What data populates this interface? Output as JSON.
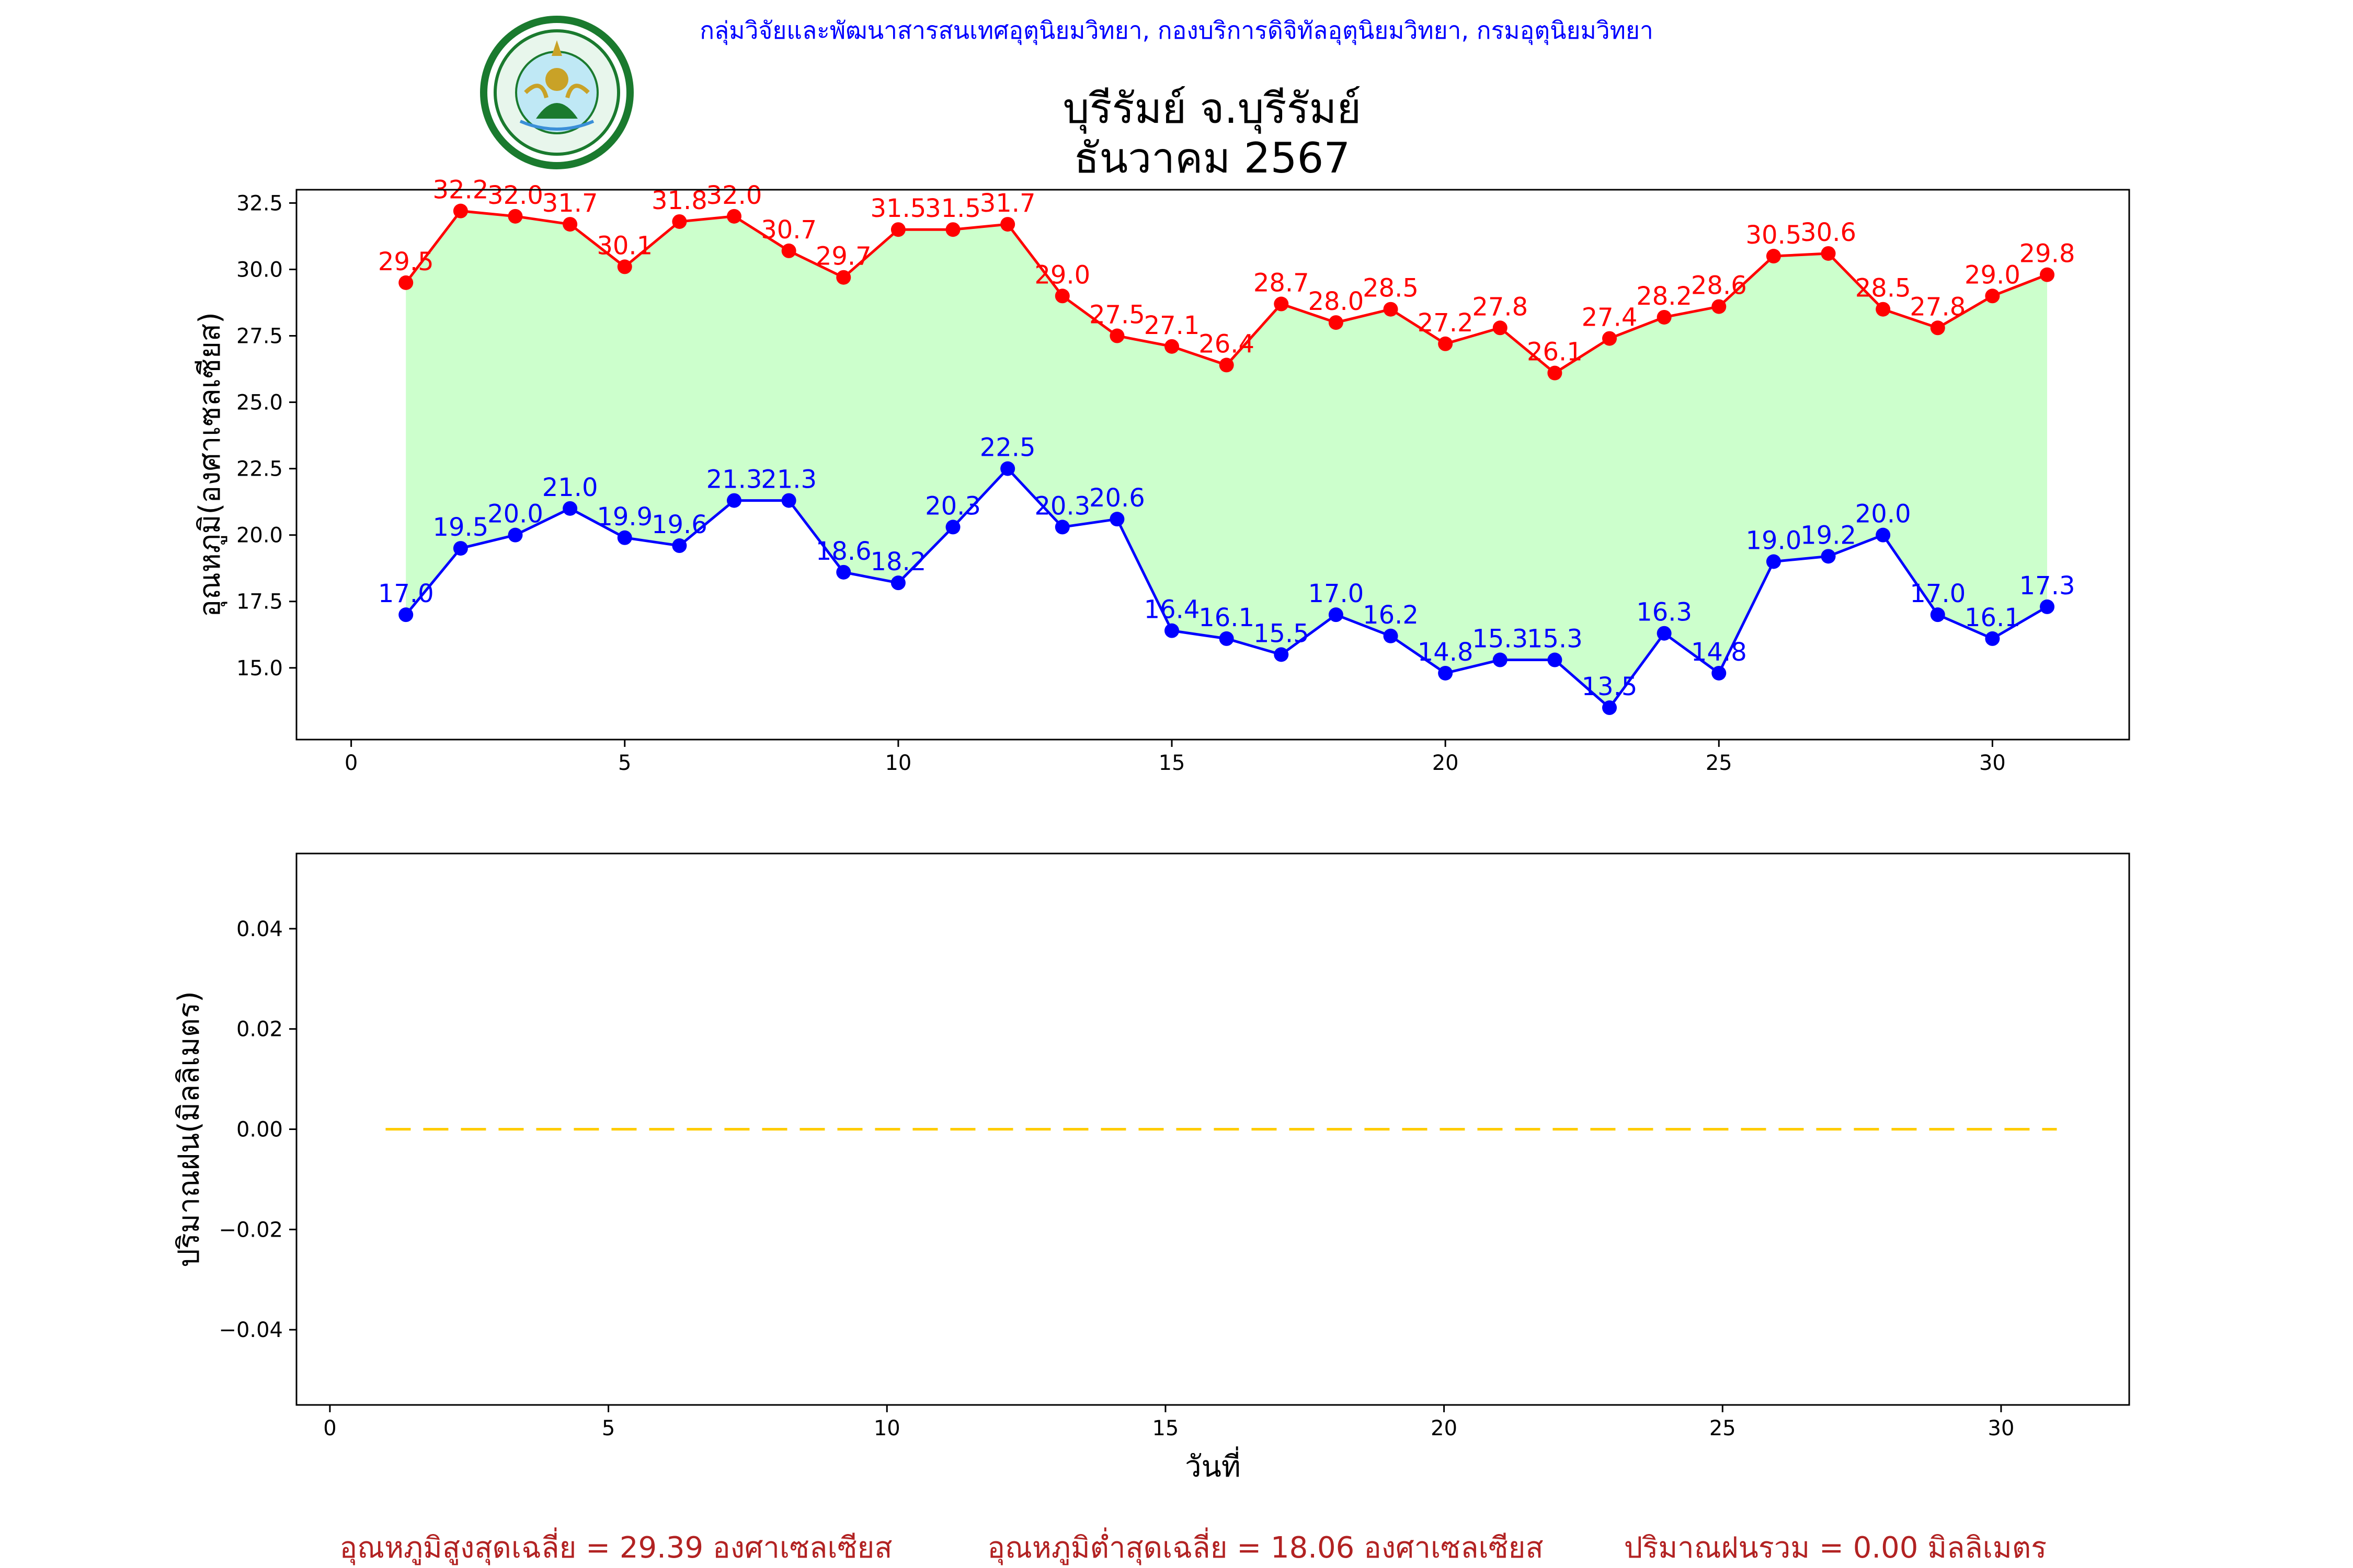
{
  "header": {
    "agency": "กลุ่มวิจัยและพัฒนาสารสนเทศอุตุนิยมวิทยา, กองบริการดิจิทัลอุตุนิยมวิทยา, กรมอุตุนิยมวิทยา",
    "title_line1": "บุรีรัมย์ จ.บุรีรัมย์",
    "title_line2": "ธันวาคม 2567",
    "logo_text_top": "กรมอุตุนิยมวิทยา",
    "logo_text_bottom": "METEOROLOGICAL DEPARTMENT"
  },
  "colors": {
    "max_series": "#ff0000",
    "min_series": "#0000ff",
    "fill": "#ccffcc",
    "rain": "#ffcc00",
    "header_text": "#0000ff",
    "summary_text": "#b22222",
    "logo_green": "#1a7a2e"
  },
  "chart_data": [
    {
      "type": "line",
      "ylabel": "อุณหภูมิ(องศาเซลเซียส)",
      "xlim": [
        -1,
        32.5
      ],
      "ylim": [
        12.3,
        33.0
      ],
      "xticks": [
        "0",
        "5",
        "10",
        "15",
        "20",
        "25",
        "30"
      ],
      "yticks": [
        "15.0",
        "17.5",
        "20.0",
        "22.5",
        "25.0",
        "27.5",
        "30.0",
        "32.5"
      ],
      "x": [
        1,
        2,
        3,
        4,
        5,
        6,
        7,
        8,
        9,
        10,
        11,
        12,
        13,
        14,
        15,
        16,
        17,
        18,
        19,
        20,
        21,
        22,
        23,
        24,
        25,
        26,
        27,
        28,
        29,
        30,
        31
      ],
      "series": [
        {
          "key": "max",
          "values": [
            29.5,
            32.2,
            32.0,
            31.7,
            30.1,
            31.8,
            32.0,
            30.7,
            29.7,
            31.5,
            31.5,
            31.7,
            29.0,
            27.5,
            27.1,
            26.4,
            28.7,
            28.0,
            28.5,
            27.2,
            27.8,
            26.1,
            27.4,
            28.2,
            28.6,
            30.5,
            30.6,
            28.5,
            27.8,
            29.0,
            29.8
          ],
          "labels": [
            "29.5",
            "32.2",
            "32.0",
            "31.7",
            "30.1",
            "31.8",
            "32.0",
            "30.7",
            "29.7",
            "31.5",
            "31.5",
            "31.7",
            "29.0",
            "27.5",
            "27.1",
            "26.4",
            "28.7",
            "28.0",
            "28.5",
            "27.2",
            "27.8",
            "26.1",
            "27.4",
            "28.2",
            "28.6",
            "30.5",
            "30.6",
            "28.5",
            "27.8",
            "29.0",
            "29.8"
          ]
        },
        {
          "key": "min",
          "values": [
            17.0,
            19.5,
            20.0,
            21.0,
            19.9,
            19.6,
            21.3,
            21.3,
            18.6,
            18.2,
            20.3,
            22.5,
            20.3,
            20.6,
            16.4,
            16.1,
            15.5,
            17.0,
            16.2,
            14.8,
            15.3,
            15.3,
            13.5,
            16.3,
            14.8,
            19.0,
            19.2,
            20.0,
            17.0,
            16.1,
            17.3
          ],
          "labels": [
            "17.0",
            "19.5",
            "20.0",
            "21.0",
            "19.9",
            "19.6",
            "21.3",
            "21.3",
            "18.6",
            "18.2",
            "20.3",
            "22.5",
            "20.3",
            "20.6",
            "16.4",
            "16.1",
            "15.5",
            "17.0",
            "16.2",
            "14.8",
            "15.3",
            "15.3",
            "13.5",
            "16.3",
            "14.8",
            "19.0",
            "19.2",
            "20.0",
            "17.0",
            "16.1",
            "17.3"
          ]
        }
      ]
    },
    {
      "type": "line",
      "xlabel": "วันที่",
      "ylabel": "ปริมาณฝน(มิลลิเมตร)",
      "xlim": [
        -0.6,
        32.3
      ],
      "ylim": [
        -0.055,
        0.055
      ],
      "xticks": [
        "0",
        "5",
        "10",
        "15",
        "20",
        "25",
        "30"
      ],
      "yticks": [
        "−0.04",
        "−0.02",
        "0.00",
        "0.02",
        "0.04"
      ],
      "x": [
        1,
        2,
        3,
        4,
        5,
        6,
        7,
        8,
        9,
        10,
        11,
        12,
        13,
        14,
        15,
        16,
        17,
        18,
        19,
        20,
        21,
        22,
        23,
        24,
        25,
        26,
        27,
        28,
        29,
        30,
        31
      ],
      "values": [
        0,
        0,
        0,
        0,
        0,
        0,
        0,
        0,
        0,
        0,
        0,
        0,
        0,
        0,
        0,
        0,
        0,
        0,
        0,
        0,
        0,
        0,
        0,
        0,
        0,
        0,
        0,
        0,
        0,
        0,
        0
      ],
      "style": "dashed"
    }
  ],
  "summary": {
    "avg_max": "อุณหภูมิสูงสุดเฉลี่ย = 29.39 องศาเซลเซียส",
    "avg_min": "อุณหภูมิต่ำสุดเฉลี่ย = 18.06 องศาเซลเซียส",
    "rain_total": "ปริมาณฝนรวม = 0.00 มิลลิเมตร"
  }
}
